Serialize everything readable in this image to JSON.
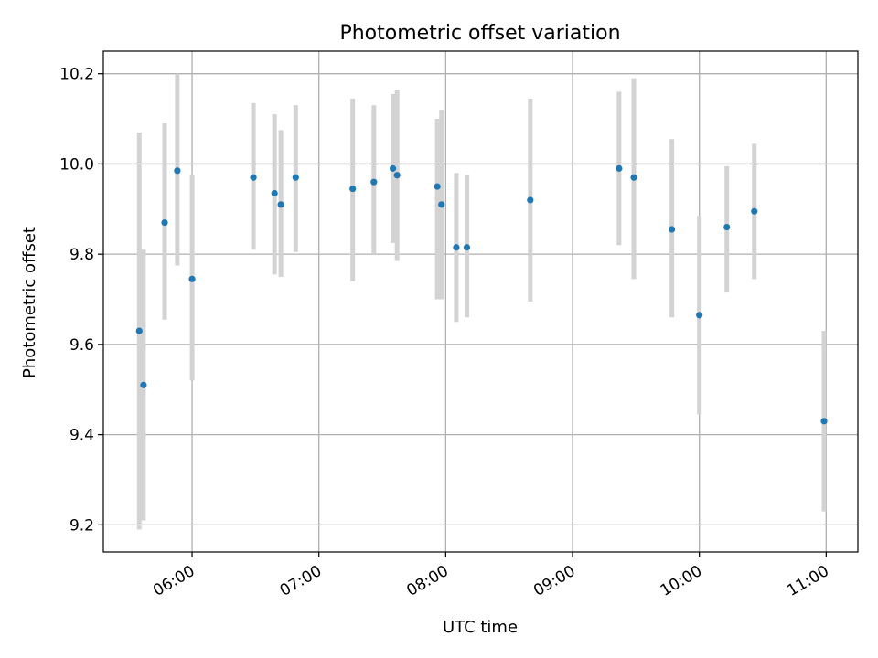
{
  "chart_data": {
    "type": "scatter",
    "title": "Photometric offset variation",
    "xlabel": "UTC time",
    "ylabel": "Photometric offset",
    "xlim": [
      "05:18",
      "11:15"
    ],
    "ylim": [
      9.14,
      10.25
    ],
    "xticks": [
      "06:00",
      "07:00",
      "08:00",
      "09:00",
      "10:00",
      "11:00"
    ],
    "yticks": [
      "9.2",
      "9.4",
      "9.6",
      "9.8",
      "10.0",
      "10.2"
    ],
    "grid": true,
    "colors": {
      "point": "#1f77b4",
      "errorbar": "#d3d3d3",
      "grid": "#b0b0b0"
    },
    "points": [
      {
        "x": "05:35",
        "y": 9.63,
        "ylo": 9.19,
        "yhi": 10.07
      },
      {
        "x": "05:37",
        "y": 9.51,
        "ylo": 9.21,
        "yhi": 9.81
      },
      {
        "x": "05:47",
        "y": 9.87,
        "ylo": 9.655,
        "yhi": 10.09
      },
      {
        "x": "05:53",
        "y": 9.985,
        "ylo": 9.775,
        "yhi": 10.2
      },
      {
        "x": "06:00",
        "y": 9.745,
        "ylo": 9.52,
        "yhi": 9.975
      },
      {
        "x": "06:29",
        "y": 9.97,
        "ylo": 9.81,
        "yhi": 10.135
      },
      {
        "x": "06:39",
        "y": 9.935,
        "ylo": 9.755,
        "yhi": 10.11
      },
      {
        "x": "06:42",
        "y": 9.91,
        "ylo": 9.75,
        "yhi": 10.075
      },
      {
        "x": "06:49",
        "y": 9.97,
        "ylo": 9.805,
        "yhi": 10.13
      },
      {
        "x": "07:16",
        "y": 9.945,
        "ylo": 9.74,
        "yhi": 10.145
      },
      {
        "x": "07:26",
        "y": 9.96,
        "ylo": 9.8,
        "yhi": 10.13
      },
      {
        "x": "07:35",
        "y": 9.99,
        "ylo": 9.825,
        "yhi": 10.155
      },
      {
        "x": "07:37",
        "y": 9.975,
        "ylo": 9.785,
        "yhi": 10.165
      },
      {
        "x": "07:56",
        "y": 9.95,
        "ylo": 9.7,
        "yhi": 10.1
      },
      {
        "x": "07:58",
        "y": 9.91,
        "ylo": 9.7,
        "yhi": 10.12
      },
      {
        "x": "08:05",
        "y": 9.815,
        "ylo": 9.65,
        "yhi": 9.98
      },
      {
        "x": "08:10",
        "y": 9.815,
        "ylo": 9.66,
        "yhi": 9.975
      },
      {
        "x": "08:40",
        "y": 9.92,
        "ylo": 9.695,
        "yhi": 10.145
      },
      {
        "x": "09:22",
        "y": 9.99,
        "ylo": 9.82,
        "yhi": 10.16
      },
      {
        "x": "09:29",
        "y": 9.97,
        "ylo": 9.745,
        "yhi": 10.19
      },
      {
        "x": "09:47",
        "y": 9.855,
        "ylo": 9.66,
        "yhi": 10.055
      },
      {
        "x": "10:00",
        "y": 9.665,
        "ylo": 9.445,
        "yhi": 9.885
      },
      {
        "x": "10:13",
        "y": 9.86,
        "ylo": 9.715,
        "yhi": 9.995
      },
      {
        "x": "10:26",
        "y": 9.895,
        "ylo": 9.745,
        "yhi": 10.045
      },
      {
        "x": "10:59",
        "y": 9.43,
        "ylo": 9.23,
        "yhi": 9.63
      }
    ]
  }
}
